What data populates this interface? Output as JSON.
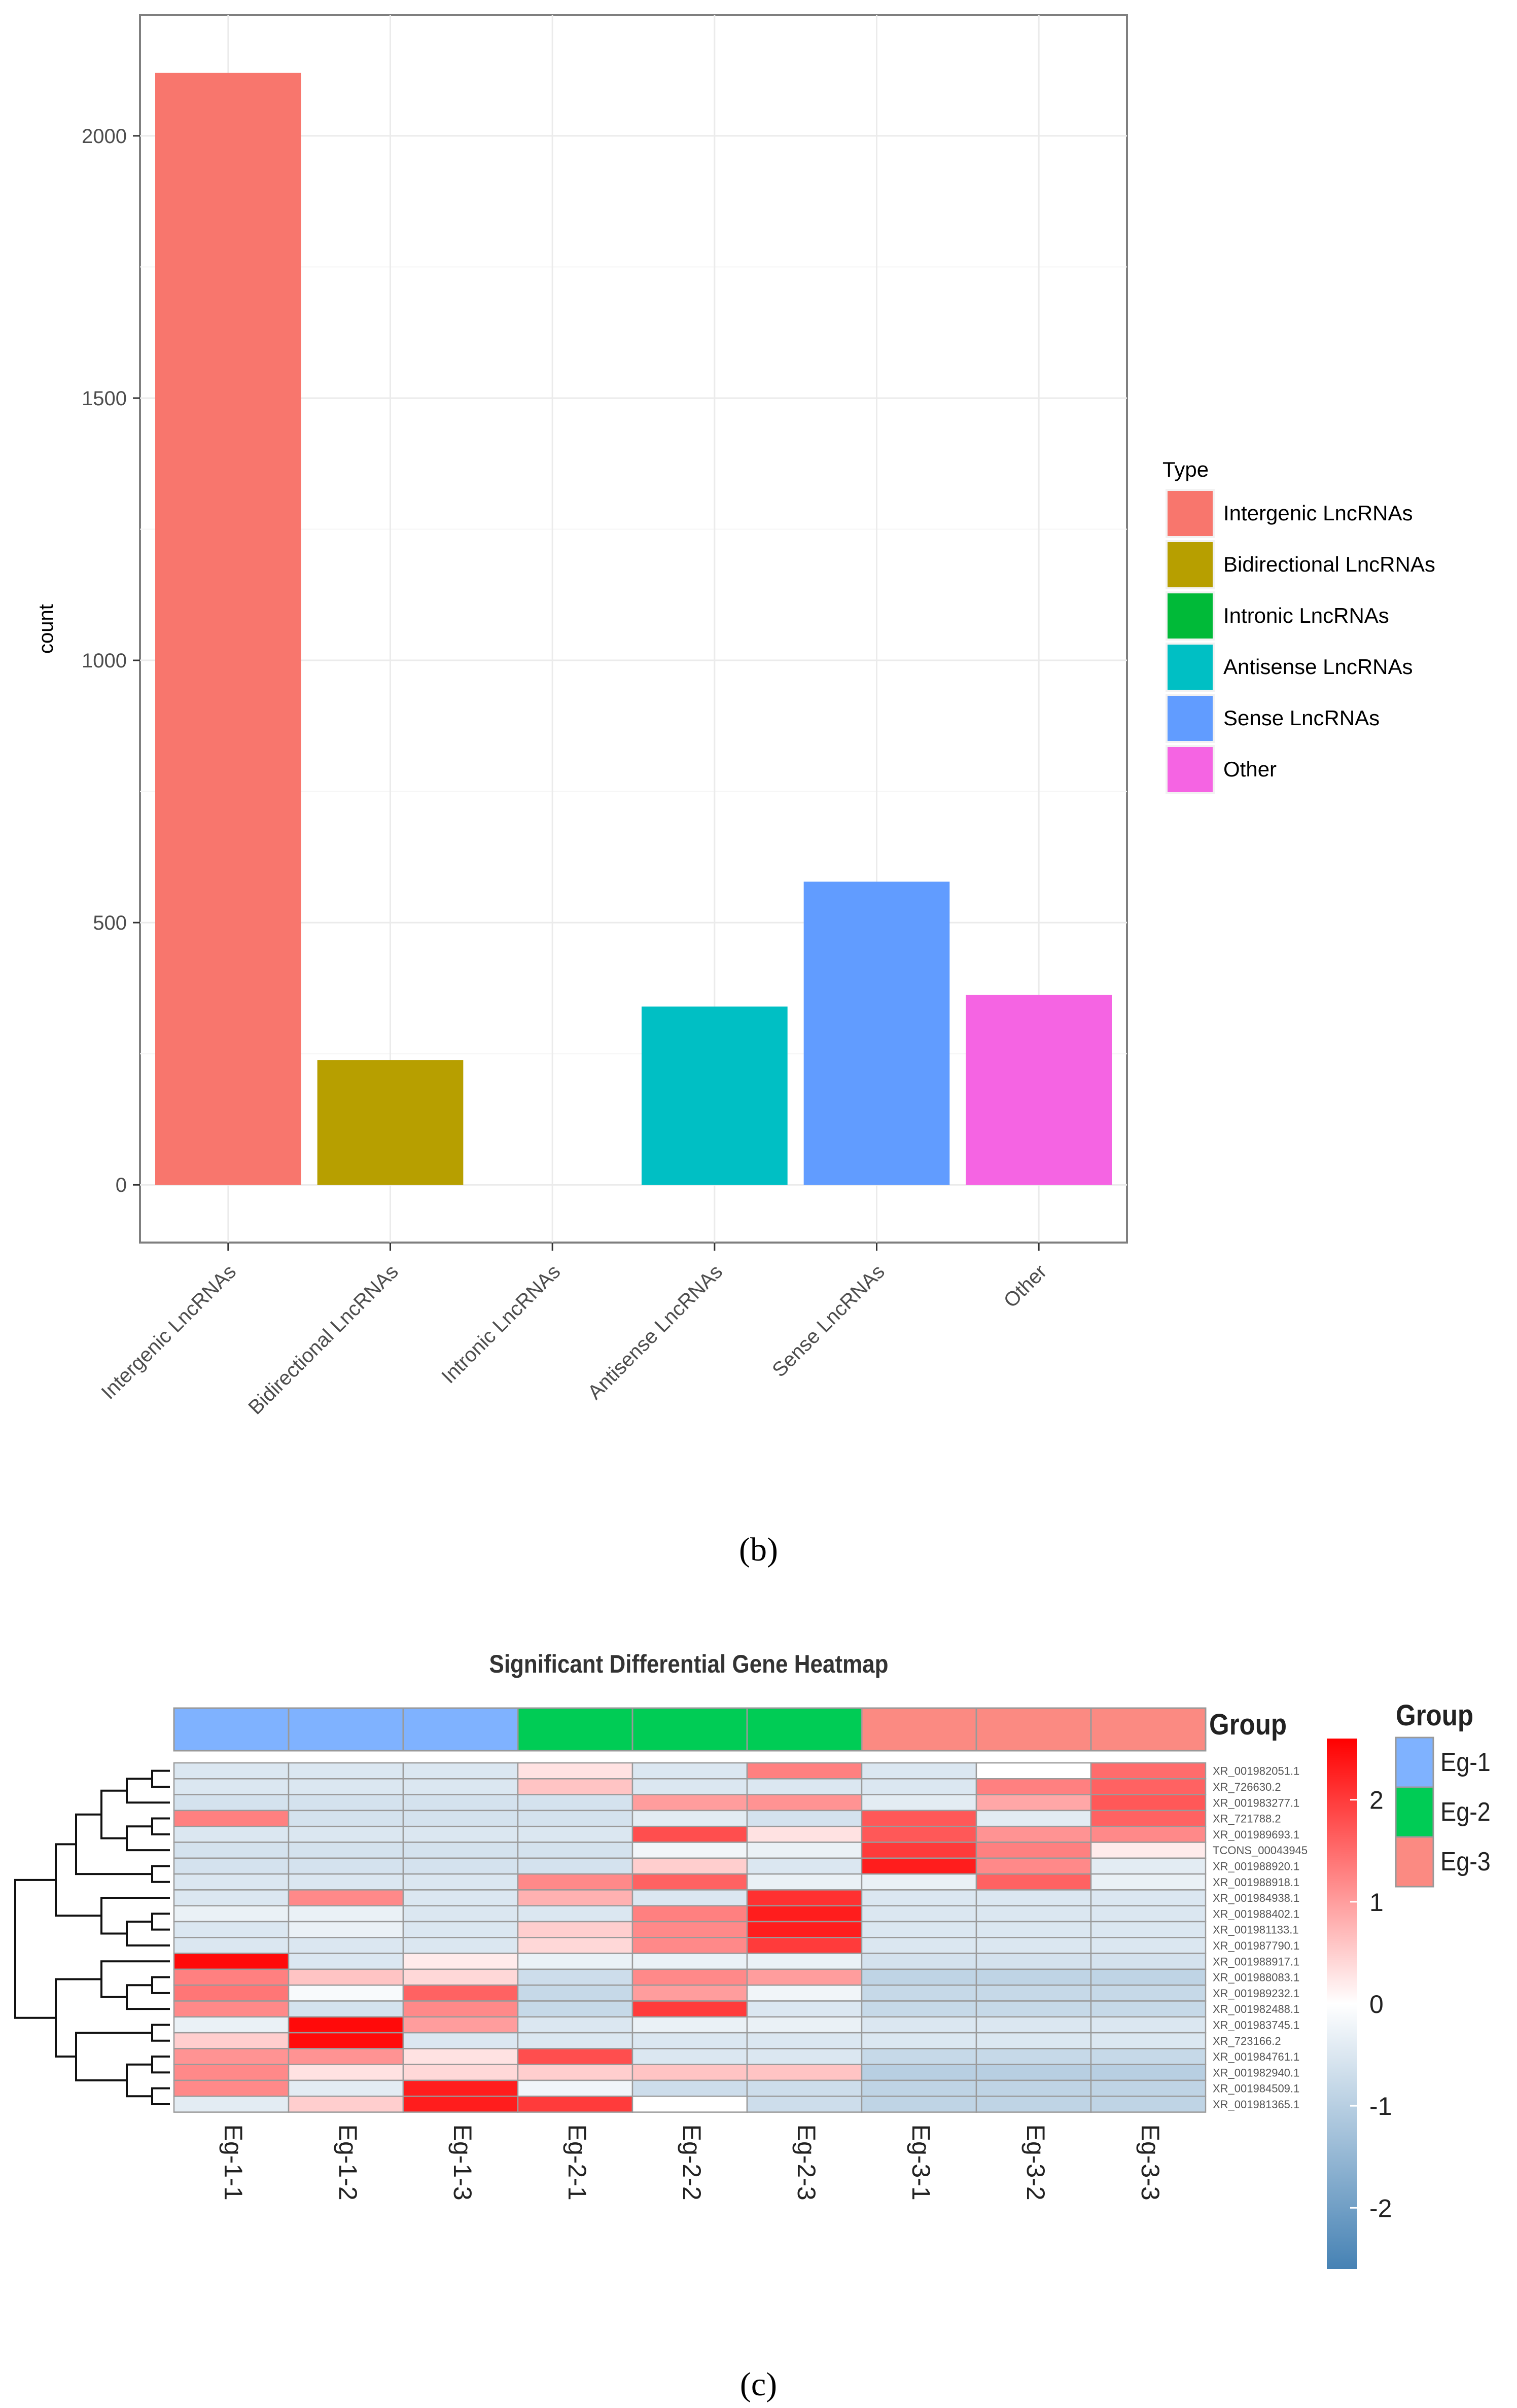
{
  "panel_b": {
    "caption": "(b)",
    "chart_data": {
      "type": "bar",
      "categories": [
        "Intergenic LncRNAs",
        "Bidirectional LncRNAs",
        "Intronic LncRNAs",
        "Antisense LncRNAs",
        "Sense LncRNAs",
        "Other"
      ],
      "values": [
        2120,
        238,
        0,
        340,
        578,
        362
      ],
      "colors": [
        "#F8766D",
        "#B79F00",
        "#00BA38",
        "#00BFC4",
        "#619CFF",
        "#F564E3"
      ],
      "ylabel": "count",
      "xlabel": "",
      "ylim": [
        -110,
        2230
      ],
      "yticks": [
        0,
        500,
        1000,
        1500,
        2000
      ],
      "legend": {
        "title": "Type",
        "placement": "right",
        "entries": [
          "Intergenic LncRNAs",
          "Bidirectional LncRNAs",
          "Intronic LncRNAs",
          "Antisense LncRNAs",
          "Sense LncRNAs",
          "Other"
        ]
      }
    }
  },
  "panel_c": {
    "caption": "(c)",
    "chart_data": {
      "type": "heatmap",
      "title": "Significant Differential Gene Heatmap",
      "columns": [
        "Eg-1-1",
        "Eg-1-2",
        "Eg-1-3",
        "Eg-2-1",
        "Eg-2-2",
        "Eg-2-3",
        "Eg-3-1",
        "Eg-3-2",
        "Eg-3-3"
      ],
      "column_groups": [
        "Eg-1",
        "Eg-1",
        "Eg-1",
        "Eg-2",
        "Eg-2",
        "Eg-2",
        "Eg-3",
        "Eg-3",
        "Eg-3"
      ],
      "group_annotation_label": "Group",
      "group_legend": {
        "title": "Group",
        "entries": [
          {
            "name": "Eg-1",
            "color": "#7FB2FF"
          },
          {
            "name": "Eg-2",
            "color": "#00CC55"
          },
          {
            "name": "Eg-3",
            "color": "#FB8A82"
          }
        ]
      },
      "color_scale": {
        "min": -2.6,
        "max": 2.6,
        "ticks": [
          2,
          1,
          0,
          -1,
          -2
        ],
        "low": "#4682B4",
        "mid": "#FFFFFF",
        "high": "#FF0000"
      },
      "rows": [
        "XR_001982051.1",
        "XR_726630.2",
        "XR_001983277.1",
        "XR_721788.2",
        "XR_001989693.1",
        "TCONS_00043945",
        "XR_001988920.1",
        "XR_001988918.1",
        "XR_001984938.1",
        "XR_001988402.1",
        "XR_001981133.1",
        "XR_001987790.1",
        "XR_001988917.1",
        "XR_001988083.1",
        "XR_001989232.1",
        "XR_001982488.1",
        "XR_001983745.1",
        "XR_723166.2",
        "XR_001984761.1",
        "XR_001982940.1",
        "XR_001984509.1",
        "XR_001981365.1"
      ],
      "values": [
        [
          -0.5,
          -0.5,
          -0.5,
          0.3,
          -0.5,
          1.3,
          -0.5,
          0.0,
          1.5
        ],
        [
          -0.5,
          -0.5,
          -0.5,
          0.6,
          -0.5,
          -0.5,
          -0.5,
          1.3,
          1.6
        ],
        [
          -0.6,
          -0.6,
          -0.6,
          -0.6,
          1.0,
          1.1,
          -0.4,
          0.9,
          1.7
        ],
        [
          1.3,
          -0.6,
          -0.6,
          -0.6,
          -0.4,
          -0.6,
          1.7,
          -0.4,
          1.6
        ],
        [
          -0.5,
          -0.5,
          -0.5,
          -0.5,
          1.8,
          0.3,
          1.7,
          1.1,
          1.2
        ],
        [
          -0.6,
          -0.6,
          -0.6,
          -0.6,
          -0.2,
          -0.3,
          2.0,
          1.3,
          0.2
        ],
        [
          -0.6,
          -0.6,
          -0.6,
          -0.6,
          0.5,
          -0.5,
          2.3,
          1.2,
          -0.4
        ],
        [
          -0.5,
          -0.5,
          -0.5,
          1.2,
          1.6,
          -0.3,
          -0.3,
          1.6,
          -0.3
        ],
        [
          -0.5,
          1.2,
          -0.5,
          0.8,
          -0.5,
          2.1,
          -0.5,
          -0.5,
          -0.5
        ],
        [
          -0.3,
          -0.3,
          -0.5,
          -0.5,
          1.3,
          2.3,
          -0.5,
          -0.5,
          -0.5
        ],
        [
          -0.5,
          -0.3,
          -0.5,
          0.5,
          1.2,
          2.3,
          -0.5,
          -0.5,
          -0.5
        ],
        [
          -0.5,
          -0.5,
          -0.5,
          0.4,
          1.2,
          2.0,
          -0.5,
          -0.5,
          -0.5
        ],
        [
          2.5,
          -0.5,
          0.2,
          -0.3,
          -0.3,
          -0.3,
          -0.6,
          -0.6,
          -0.6
        ],
        [
          1.3,
          0.6,
          0.4,
          -0.7,
          1.2,
          1.0,
          -0.9,
          -0.9,
          -0.9
        ],
        [
          1.4,
          -0.1,
          1.6,
          -0.8,
          1.0,
          -0.2,
          -0.8,
          -0.8,
          -0.8
        ],
        [
          1.2,
          -0.6,
          1.2,
          -0.8,
          2.0,
          -0.5,
          -0.8,
          -0.8,
          -0.8
        ],
        [
          -0.3,
          2.5,
          1.0,
          -0.5,
          -0.3,
          -0.3,
          -0.5,
          -0.5,
          -0.5
        ],
        [
          0.5,
          2.5,
          -0.5,
          -0.5,
          -0.5,
          -0.5,
          -0.5,
          -0.5,
          -0.5
        ],
        [
          1.1,
          1.1,
          0.3,
          1.8,
          -0.5,
          -0.5,
          -0.8,
          -0.8,
          -0.8
        ],
        [
          1.2,
          0.3,
          0.4,
          0.5,
          0.6,
          0.6,
          -1.0,
          -1.0,
          -1.0
        ],
        [
          1.2,
          -0.4,
          2.3,
          -0.2,
          -0.7,
          -0.7,
          -0.9,
          -0.9,
          -0.9
        ],
        [
          -0.4,
          0.5,
          2.3,
          2.0,
          0.0,
          -0.7,
          -0.9,
          -0.9,
          -0.9
        ]
      ]
    }
  }
}
